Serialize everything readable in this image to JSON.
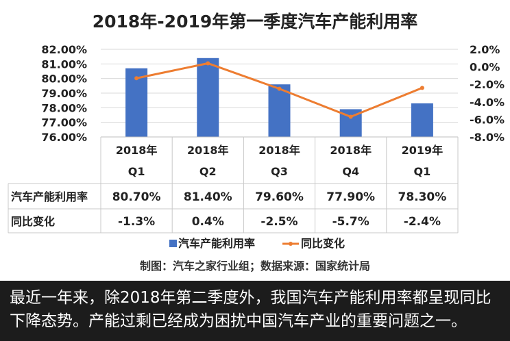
{
  "chart_data": {
    "type": "bar",
    "title": "2018年-2019年第一季度汽车产能利用率",
    "categories": [
      [
        "2018年",
        "Q1"
      ],
      [
        "2018年",
        "Q2"
      ],
      [
        "2018年",
        "Q3"
      ],
      [
        "2018年",
        "Q4"
      ],
      [
        "2019年",
        "Q1"
      ]
    ],
    "series": [
      {
        "name": "汽车产能利用率",
        "type": "bar",
        "axis": "left",
        "color": "#4472C4",
        "values": [
          80.7,
          81.4,
          79.6,
          77.9,
          78.3
        ],
        "labels": [
          "80.70%",
          "81.40%",
          "79.60%",
          "77.90%",
          "78.30%"
        ]
      },
      {
        "name": "同比变化",
        "type": "line",
        "axis": "right",
        "color": "#ED7D31",
        "values": [
          -1.3,
          0.4,
          -2.5,
          -5.7,
          -2.4
        ],
        "labels": [
          "-1.3%",
          "0.4%",
          "-2.5%",
          "-5.7%",
          "-2.4%"
        ]
      }
    ],
    "ylim_left": [
      76,
      82
    ],
    "yticks_left": [
      "82.00%",
      "81.00%",
      "80.00%",
      "79.00%",
      "78.00%",
      "77.00%",
      "76.00%"
    ],
    "ylim_right": [
      -8,
      2
    ],
    "yticks_right": [
      "2.0%",
      "0.0%",
      "-2.0%",
      "-4.0%",
      "-6.0%",
      "-8.0%"
    ],
    "grid": true,
    "data_table": true,
    "legend_position": "bottom",
    "legend": [
      "汽车产能利用率",
      "同比变化"
    ],
    "source": "制图：汽车之家行业组；数据来源：国家统计局"
  },
  "caption": "最近一年来，除2018年第二季度外，我国汽车产能利用率都呈现同比下降态势。产能过剩已经成为困扰中国汽车产业的重要问题之一。"
}
